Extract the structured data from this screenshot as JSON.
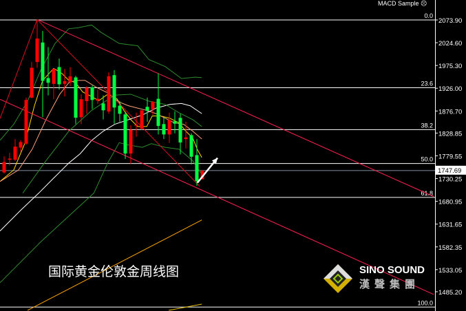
{
  "indicator_label": "MACD Sample",
  "indicator_icon": "sad-face-icon",
  "chart_title_text": "国际黄金伦敦金周线图",
  "logo": {
    "en": "SINO SOUND",
    "cn": "漢聲集團"
  },
  "colors": {
    "bull": "#ff0000",
    "bear": "#00ff40",
    "background": "#000000",
    "fib": "#ffffff",
    "channel": "#ff2050",
    "ma_fast": "#ffd700",
    "ma_mid": "#ffa07a",
    "ma_slow": "#ffffff",
    "bollinger": "#2e8b2e",
    "ma_long": "#ffa500",
    "current_price": "#8090a0"
  },
  "chart_data": {
    "type": "candlestick",
    "timeframe": "weekly",
    "ylim": [
      1452,
      2090
    ],
    "y_ticks": [
      "2073.90",
      "2024.60",
      "1975.30",
      "1926.00",
      "1876.70",
      "1828.85",
      "1779.55",
      "1730.25",
      "1680.95",
      "1631.65",
      "1582.35",
      "1533.05",
      "1485.20"
    ],
    "current_price": "1747.69",
    "candles": [
      {
        "o": 1743.7,
        "h": 1778.6,
        "l": 1741.2,
        "c": 1766.1
      },
      {
        "o": 1771.1,
        "h": 1786.1,
        "l": 1758.6,
        "c": 1773.6
      },
      {
        "o": 1771.1,
        "h": 1815.9,
        "l": 1768.6,
        "c": 1799.5
      },
      {
        "o": 1797.5,
        "h": 1813.4,
        "l": 1788.5,
        "c": 1809.5
      },
      {
        "o": 1806.0,
        "h": 1905.6,
        "l": 1803.5,
        "c": 1900.6
      },
      {
        "o": 1905.6,
        "h": 1982.8,
        "l": 1904.1,
        "c": 1970.3
      },
      {
        "o": 1982.8,
        "h": 2074.9,
        "l": 1970.3,
        "c": 2033.6
      },
      {
        "o": 2025.1,
        "h": 2050.0,
        "l": 1863.2,
        "c": 1941.9
      },
      {
        "o": 1947.9,
        "h": 2015.1,
        "l": 1910.6,
        "c": 1937.9
      },
      {
        "o": 1935.5,
        "h": 1968.8,
        "l": 1902.1,
        "c": 1967.8
      },
      {
        "o": 1971.8,
        "h": 1990.2,
        "l": 1923.0,
        "c": 1934.5
      },
      {
        "o": 1935.5,
        "h": 1967.8,
        "l": 1908.1,
        "c": 1941.4
      },
      {
        "o": 1938.9,
        "h": 1971.8,
        "l": 1930.5,
        "c": 1951.9
      },
      {
        "o": 1949.4,
        "h": 1952.9,
        "l": 1848.3,
        "c": 1862.2
      },
      {
        "o": 1863.2,
        "h": 1913.0,
        "l": 1848.3,
        "c": 1902.1
      },
      {
        "o": 1898.1,
        "h": 1930.5,
        "l": 1870.7,
        "c": 1927.0
      },
      {
        "o": 1928.0,
        "h": 1932.0,
        "l": 1880.7,
        "c": 1900.6
      },
      {
        "o": 1899.1,
        "h": 1923.0,
        "l": 1892.1,
        "c": 1903.1
      },
      {
        "o": 1893.1,
        "h": 1910.6,
        "l": 1858.3,
        "c": 1878.2
      },
      {
        "o": 1875.7,
        "h": 1960.4,
        "l": 1870.7,
        "c": 1951.9
      },
      {
        "o": 1954.4,
        "h": 1965.3,
        "l": 1849.3,
        "c": 1884.2
      },
      {
        "o": 1888.2,
        "h": 1898.1,
        "l": 1853.3,
        "c": 1870.7
      },
      {
        "o": 1869.2,
        "h": 1875.7,
        "l": 1772.6,
        "c": 1784.6
      },
      {
        "o": 1784.6,
        "h": 1845.8,
        "l": 1762.6,
        "c": 1835.8
      },
      {
        "o": 1844.8,
        "h": 1873.2,
        "l": 1820.9,
        "c": 1846.8
      },
      {
        "o": 1838.4,
        "h": 1878.2,
        "l": 1835.8,
        "c": 1878.2
      },
      {
        "o": 1885.7,
        "h": 1905.6,
        "l": 1853.3,
        "c": 1877.2
      },
      {
        "o": 1880.7,
        "h": 1898.1,
        "l": 1868.2,
        "c": 1896.6
      },
      {
        "o": 1903.1,
        "h": 1957.9,
        "l": 1825.9,
        "c": 1844.3
      },
      {
        "o": 1848.3,
        "h": 1863.2,
        "l": 1815.9,
        "c": 1825.9
      },
      {
        "o": 1825.9,
        "h": 1873.2,
        "l": 1807.5,
        "c": 1857.3
      },
      {
        "o": 1854.3,
        "h": 1875.7,
        "l": 1828.4,
        "c": 1849.3
      },
      {
        "o": 1861.8,
        "h": 1870.7,
        "l": 1782.6,
        "c": 1808.5
      },
      {
        "o": 1815.9,
        "h": 1853.3,
        "l": 1796.0,
        "c": 1819.4
      },
      {
        "o": 1824.4,
        "h": 1828.4,
        "l": 1761.1,
        "c": 1777.6
      },
      {
        "o": 1781.1,
        "h": 1815.9,
        "l": 1714.8,
        "c": 1724.8
      },
      {
        "o": 1728.8,
        "h": 1747.7,
        "l": 1728.8,
        "c": 1747.69
      }
    ],
    "fibonacci": {
      "high": 2073.9,
      "low": 1452.0,
      "levels": [
        {
          "label": "0.0",
          "price": 2073.9
        },
        {
          "label": "23.6",
          "price": 1927.1
        },
        {
          "label": "38.2",
          "price": 1836.3
        },
        {
          "label": "50.0",
          "price": 1762.9
        },
        {
          "label": "61.8",
          "price": 1689.6
        },
        {
          "label": "100.0",
          "price": 1452.0
        }
      ]
    },
    "trendlines": [
      {
        "kind": "channel",
        "p1": [
          6,
          2074.9
        ],
        "p2": [
          78,
          1691.4
        ]
      },
      {
        "kind": "channel",
        "p1": [
          -0.75,
          1902.1
        ],
        "p2": [
          78,
          1479.3
        ]
      },
      {
        "kind": "fan",
        "p1": [
          6,
          2074.9
        ],
        "p2": [
          -0.75,
          1860.3
        ]
      },
      {
        "kind": "fan",
        "p1": [
          6,
          2074.9
        ],
        "p2": [
          35.5,
          1713.8
        ]
      }
    ],
    "arrow": {
      "from": [
        35.1,
        1721.3
      ],
      "to": [
        38.75,
        1775.0
      ]
    },
    "lines": [
      {
        "id": "ma-fast",
        "color": "#ffd700",
        "points": [
          [
            -0.75,
            1724
          ],
          [
            1.75,
            1749
          ],
          [
            3.8,
            1808
          ],
          [
            5.5,
            1888
          ],
          [
            7,
            1943
          ],
          [
            9,
            1969
          ],
          [
            10.5,
            1958
          ],
          [
            11.75,
            1943
          ],
          [
            13,
            1938
          ],
          [
            14.25,
            1918
          ],
          [
            15.9,
            1908
          ],
          [
            17.2,
            1899
          ],
          [
            18.8,
            1913
          ],
          [
            20.5,
            1903
          ],
          [
            21.75,
            1878
          ],
          [
            23,
            1858
          ],
          [
            24.25,
            1843
          ],
          [
            25.9,
            1843
          ],
          [
            26.9,
            1866
          ],
          [
            28.4,
            1866
          ],
          [
            30.1,
            1861
          ],
          [
            31.75,
            1851
          ],
          [
            33,
            1833
          ],
          [
            34.25,
            1818
          ],
          [
            35.1,
            1793
          ],
          [
            35.9,
            1776
          ]
        ]
      },
      {
        "id": "ma-mid",
        "color": "#ffa07a",
        "points": [
          [
            -0.75,
            1724
          ],
          [
            2.6,
            1749
          ],
          [
            5.1,
            1794
          ],
          [
            7.6,
            1858
          ],
          [
            10.1,
            1913
          ],
          [
            11.75,
            1938
          ],
          [
            13,
            1943
          ],
          [
            14.7,
            1943
          ],
          [
            16.75,
            1928
          ],
          [
            18.8,
            1916
          ],
          [
            20.9,
            1896
          ],
          [
            22.6,
            1888
          ],
          [
            24.25,
            1883
          ],
          [
            25.9,
            1878
          ],
          [
            27.6,
            1871
          ],
          [
            29.25,
            1861
          ],
          [
            30.9,
            1851
          ],
          [
            32.6,
            1848
          ],
          [
            34.25,
            1833
          ],
          [
            35.9,
            1816
          ]
        ]
      },
      {
        "id": "ma-slow",
        "color": "#ffffff",
        "points": [
          [
            -0.75,
            1616.7
          ],
          [
            3,
            1661.6
          ],
          [
            6.3,
            1699
          ],
          [
            8.8,
            1729
          ],
          [
            11.75,
            1764
          ],
          [
            13.8,
            1784
          ],
          [
            15.9,
            1813
          ],
          [
            18,
            1833
          ],
          [
            20.1,
            1848
          ],
          [
            22.6,
            1858
          ],
          [
            25.1,
            1868
          ],
          [
            27.6,
            1883
          ],
          [
            30.1,
            1891
          ],
          [
            32.2,
            1893
          ],
          [
            33.8,
            1888
          ],
          [
            35.9,
            1871
          ]
        ]
      },
      {
        "id": "bollinger-upper",
        "color": "#2e8b2e",
        "points": [
          [
            -0.75,
            1813
          ],
          [
            1.75,
            1848
          ],
          [
            4.25,
            1898
          ],
          [
            6.75,
            1968
          ],
          [
            9.25,
            2023
          ],
          [
            11.75,
            2055
          ],
          [
            13.4,
            2057
          ],
          [
            15.9,
            2063
          ],
          [
            17.6,
            2047
          ],
          [
            20.9,
            2023
          ],
          [
            24.25,
            2018
          ],
          [
            26.3,
            1988
          ],
          [
            29.25,
            1973
          ],
          [
            32.2,
            1947
          ],
          [
            34.7,
            1950
          ],
          [
            35.9,
            1949
          ]
        ]
      },
      {
        "id": "bollinger-middle",
        "color": "#2e8b2e",
        "points": [
          [
            3.4,
            1699
          ],
          [
            7.6,
            1769
          ],
          [
            11.75,
            1833
          ],
          [
            15.9,
            1878
          ],
          [
            20.1,
            1911
          ],
          [
            23,
            1913
          ],
          [
            26.3,
            1898
          ],
          [
            29.25,
            1891
          ],
          [
            31.75,
            1873
          ],
          [
            34.25,
            1858
          ],
          [
            35.9,
            1843
          ]
        ]
      },
      {
        "id": "bollinger-lower",
        "color": "#2e8b2e",
        "points": [
          [
            -0.75,
            1504.7
          ],
          [
            6.75,
            1594.3
          ],
          [
            16.3,
            1699
          ],
          [
            18.8,
            1764
          ],
          [
            20.9,
            1808
          ],
          [
            22.6,
            1803
          ],
          [
            25.1,
            1798
          ],
          [
            26.75,
            1806
          ],
          [
            29.25,
            1798
          ],
          [
            31.75,
            1794
          ],
          [
            34.25,
            1769
          ],
          [
            35.9,
            1739
          ]
        ]
      },
      {
        "id": "ma-long-1",
        "color": "#ffa500",
        "points": [
          [
            4.25,
            1444.9
          ],
          [
            35.9,
            1640.6
          ]
        ]
      },
      {
        "id": "ma-long-2",
        "color": "#e8c000",
        "points": [
          [
            29.9,
            1444.9
          ],
          [
            35.9,
            1458.4
          ]
        ]
      }
    ]
  }
}
